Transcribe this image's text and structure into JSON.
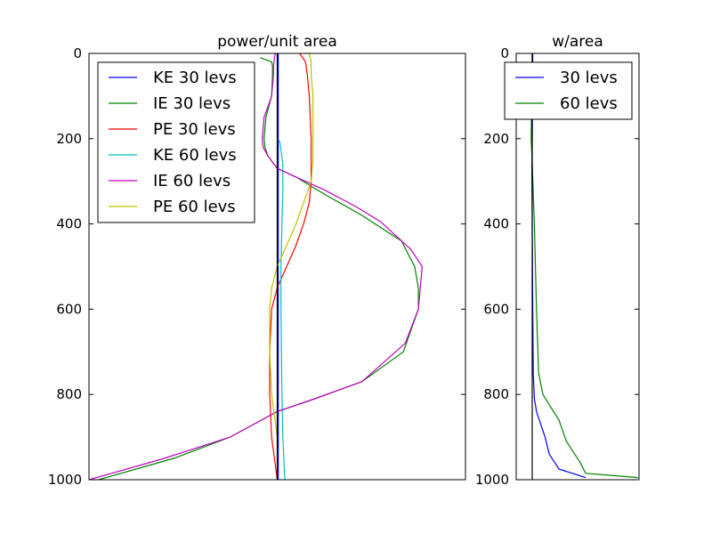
{
  "chart_data": [
    {
      "type": "line",
      "title": "power/unit area",
      "xlabel": "",
      "ylabel": "",
      "ylim": [
        0,
        1000
      ],
      "y_inverted": true,
      "ytick_labels": [
        "0",
        "200",
        "400",
        "600",
        "800",
        "1000"
      ],
      "yticks": [
        0,
        200,
        400,
        600,
        800,
        1000
      ],
      "x_axis_ticks_visible": false,
      "x_range": [
        -1,
        1
      ],
      "grid": false,
      "legend_position": "top-left",
      "reference_line_x": 0,
      "series": [
        {
          "name": "KE 30 levs",
          "color": "#0000ff",
          "x": [
            0.005,
            0.005,
            0.005,
            0.005,
            0.005,
            0.005,
            0.005
          ],
          "y": [
            0,
            200,
            400,
            600,
            800,
            1000,
            1000
          ]
        },
        {
          "name": "IE 30 levs",
          "color": "#008000",
          "x": [
            -0.09,
            -0.03,
            -0.025,
            -0.025,
            -0.03,
            -0.06,
            -0.07,
            -0.065,
            -0.05,
            0.0,
            0.1,
            0.25,
            0.45,
            0.66,
            0.73,
            0.75,
            0.75,
            0.67,
            0.45,
            0.2,
            0.0,
            -0.25,
            -0.55,
            -0.95
          ],
          "y": [
            10,
            20,
            30,
            50,
            100,
            150,
            200,
            220,
            240,
            270,
            290,
            330,
            380,
            440,
            500,
            550,
            600,
            700,
            770,
            810,
            840,
            900,
            950,
            1000
          ]
        },
        {
          "name": "PE 30 levs",
          "color": "#ff0000",
          "x": [
            0.12,
            0.15,
            0.16,
            0.17,
            0.18,
            0.18,
            0.18,
            0.17,
            0.14,
            0.1,
            0.05,
            0.0,
            -0.03,
            -0.04,
            -0.04,
            -0.03,
            0.0
          ],
          "y": [
            0,
            20,
            50,
            100,
            200,
            250,
            300,
            350,
            400,
            450,
            500,
            550,
            600,
            700,
            800,
            900,
            1000
          ]
        },
        {
          "name": "KE 60 levs",
          "color": "#00bfbf",
          "x": [
            0.005,
            0.015,
            0.03,
            0.03,
            0.025,
            0.02,
            0.02,
            0.025,
            0.03,
            0.04
          ],
          "y": [
            200,
            210,
            260,
            320,
            400,
            500,
            600,
            800,
            900,
            1000
          ]
        },
        {
          "name": "IE 60 levs",
          "color": "#bf00bf",
          "x": [
            -0.01,
            -0.015,
            -0.02,
            -0.02,
            -0.03,
            -0.07,
            -0.08,
            -0.075,
            -0.05,
            0.0,
            0.1,
            0.25,
            0.42,
            0.55,
            0.71,
            0.77,
            0.76,
            0.75,
            0.68,
            0.45,
            0.2,
            0.0,
            -0.25,
            -0.6,
            -1.0
          ],
          "y": [
            0,
            10,
            30,
            50,
            100,
            150,
            200,
            220,
            240,
            270,
            290,
            320,
            360,
            395,
            460,
            500,
            550,
            600,
            680,
            770,
            810,
            840,
            900,
            950,
            1000
          ]
        },
        {
          "name": "PE 60 levs",
          "color": "#bfbf00",
          "x": [
            0.17,
            0.18,
            0.18,
            0.19,
            0.19,
            0.19,
            0.18,
            0.14,
            0.1,
            0.05,
            0.0,
            -0.03,
            -0.04,
            -0.04,
            -0.03,
            0.0
          ],
          "y": [
            0,
            20,
            50,
            100,
            200,
            250,
            300,
            350,
            400,
            450,
            500,
            550,
            600,
            700,
            800,
            900
          ]
        }
      ]
    },
    {
      "type": "line",
      "title": "w/area",
      "xlabel": "",
      "ylabel": "",
      "ylim": [
        0,
        1000
      ],
      "y_inverted": true,
      "ytick_labels": [
        "0",
        "200",
        "400",
        "600",
        "800",
        "1000"
      ],
      "yticks": [
        0,
        200,
        400,
        600,
        800,
        1000
      ],
      "x_axis_ticks_visible": false,
      "x_range": [
        -0.15,
        1
      ],
      "grid": false,
      "legend_position": "top-left",
      "reference_line_x": 0,
      "series": [
        {
          "name": "30 levs",
          "color": "#0000ff",
          "x": [
            0.005,
            0.003,
            0.0,
            -0.003,
            0.0,
            0.005,
            0.01,
            0.02,
            0.04,
            0.08,
            0.12,
            0.16,
            0.25,
            0.5
          ],
          "y": [
            0,
            100,
            200,
            260,
            400,
            600,
            750,
            810,
            840,
            870,
            900,
            940,
            975,
            995
          ]
        },
        {
          "name": "60 levs",
          "color": "#008000",
          "x": [
            0.0,
            -0.005,
            -0.01,
            0.0,
            0.02,
            0.04,
            0.06,
            0.1,
            0.2,
            0.25,
            0.32,
            0.45,
            0.5,
            0.99
          ],
          "y": [
            0,
            100,
            200,
            260,
            400,
            600,
            750,
            800,
            840,
            860,
            910,
            960,
            985,
            995
          ]
        }
      ]
    }
  ]
}
